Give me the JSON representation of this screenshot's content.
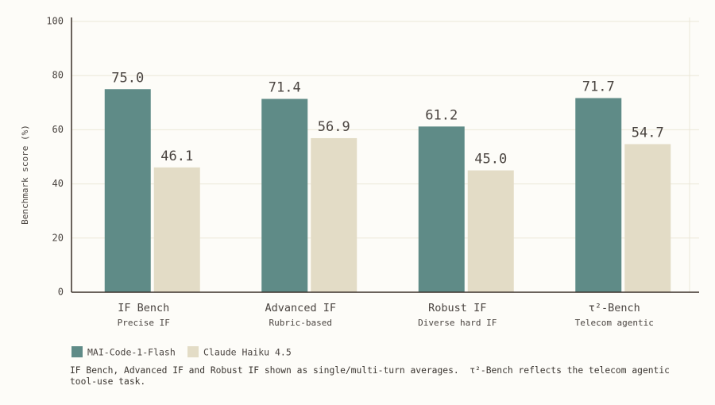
{
  "chart_data": {
    "type": "bar",
    "y_label": "Benchmark score (%)",
    "categories": [
      "IF Bench",
      "Advanced IF",
      "Robust IF",
      "τ²-Bench"
    ],
    "category_notes": [
      "Precise IF",
      "Rubric-based",
      "Diverse hard IF",
      "Telecom agentic"
    ],
    "series": [
      {
        "name": "MAI-Code-1-Flash",
        "color": "#5f8b87",
        "values": [
          75.0,
          71.4,
          61.2,
          71.7
        ],
        "value_labels": [
          "75.0",
          "71.4",
          "61.2",
          "71.7"
        ]
      },
      {
        "name": "Claude Haiku 4.5",
        "color": "#e3dcc6",
        "values": [
          46.1,
          56.9,
          45.0,
          54.7
        ],
        "value_labels": [
          "46.1",
          "56.9",
          "45.0",
          "54.7"
        ]
      }
    ],
    "ylim": [
      0,
      100
    ],
    "yticks": [
      0,
      20,
      40,
      60,
      80,
      100
    ],
    "grid": true,
    "footnote": "IF Bench, Advanced IF and Robust IF shown as single/multi-turn averages.  τ²-Bench reflects the telecom agentic tool-use task."
  }
}
